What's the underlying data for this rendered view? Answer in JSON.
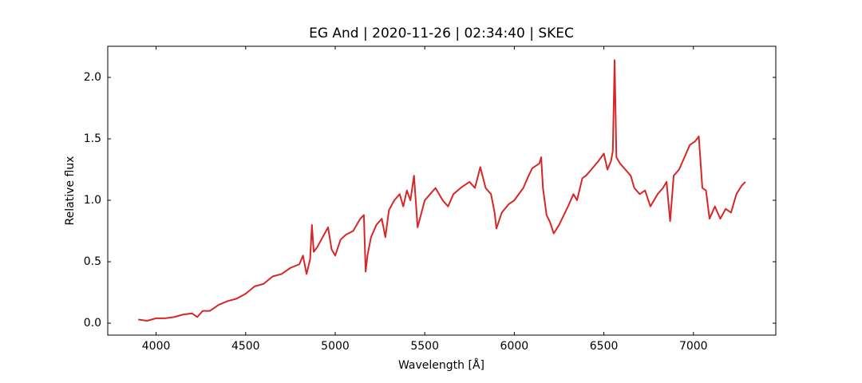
{
  "chart_data": {
    "type": "line",
    "title": "EG And | 2020-11-26 | 02:34:40 | SKEC",
    "xlabel": "Wavelength [Å]",
    "ylabel": "Relative flux",
    "color": "#d62728",
    "xlim": [
      3730,
      7460
    ],
    "ylim": [
      -0.097,
      2.253
    ],
    "xticks": [
      4000,
      4500,
      5000,
      5500,
      6000,
      6500,
      7000
    ],
    "yticks": [
      {
        "value": 0,
        "label": "0.0"
      },
      0.5,
      {
        "value": 1,
        "label": "1.0"
      },
      1.5,
      {
        "value": 2,
        "label": "2.0"
      }
    ],
    "tick_direction": "in",
    "mirror_ticks": true,
    "grid": false,
    "x": [
      3900,
      3950,
      4000,
      4050,
      4100,
      4150,
      4200,
      4230,
      4260,
      4300,
      4350,
      4400,
      4450,
      4500,
      4550,
      4600,
      4650,
      4700,
      4750,
      4800,
      4820,
      4840,
      4860,
      4870,
      4880,
      4900,
      4930,
      4960,
      4980,
      5000,
      5030,
      5060,
      5100,
      5140,
      5160,
      5170,
      5180,
      5200,
      5230,
      5260,
      5280,
      5300,
      5330,
      5360,
      5380,
      5400,
      5420,
      5440,
      5460,
      5500,
      5530,
      5560,
      5600,
      5630,
      5660,
      5700,
      5750,
      5780,
      5810,
      5840,
      5870,
      5890,
      5900,
      5930,
      5970,
      6000,
      6050,
      6080,
      6100,
      6140,
      6150,
      6160,
      6180,
      6200,
      6220,
      6250,
      6300,
      6330,
      6350,
      6380,
      6400,
      6430,
      6470,
      6500,
      6520,
      6540,
      6550,
      6560,
      6570,
      6590,
      6620,
      6650,
      6670,
      6700,
      6730,
      6760,
      6800,
      6830,
      6850,
      6870,
      6890,
      6920,
      6950,
      6980,
      7010,
      7030,
      7050,
      7070,
      7090,
      7120,
      7150,
      7180,
      7210,
      7240,
      7270,
      7290
    ],
    "values": [
      0.03,
      0.02,
      0.04,
      0.04,
      0.05,
      0.07,
      0.08,
      0.05,
      0.1,
      0.1,
      0.15,
      0.18,
      0.2,
      0.24,
      0.3,
      0.32,
      0.38,
      0.4,
      0.45,
      0.48,
      0.55,
      0.4,
      0.52,
      0.8,
      0.58,
      0.62,
      0.7,
      0.78,
      0.6,
      0.55,
      0.68,
      0.72,
      0.75,
      0.85,
      0.88,
      0.42,
      0.55,
      0.7,
      0.8,
      0.85,
      0.7,
      0.92,
      1.0,
      1.05,
      0.95,
      1.08,
      1.0,
      1.2,
      0.78,
      1.0,
      1.05,
      1.1,
      1.0,
      0.95,
      1.05,
      1.1,
      1.15,
      1.1,
      1.27,
      1.1,
      1.05,
      0.9,
      0.77,
      0.9,
      0.97,
      1.0,
      1.1,
      1.2,
      1.26,
      1.3,
      1.35,
      1.1,
      0.88,
      0.82,
      0.73,
      0.8,
      0.95,
      1.05,
      1.0,
      1.18,
      1.2,
      1.25,
      1.32,
      1.38,
      1.25,
      1.32,
      1.4,
      2.14,
      1.35,
      1.3,
      1.25,
      1.2,
      1.1,
      1.05,
      1.08,
      0.95,
      1.05,
      1.1,
      1.15,
      0.83,
      1.2,
      1.25,
      1.35,
      1.45,
      1.48,
      1.52,
      1.1,
      1.08,
      0.85,
      0.95,
      0.85,
      0.93,
      0.9,
      1.05,
      1.12,
      1.15
    ]
  }
}
